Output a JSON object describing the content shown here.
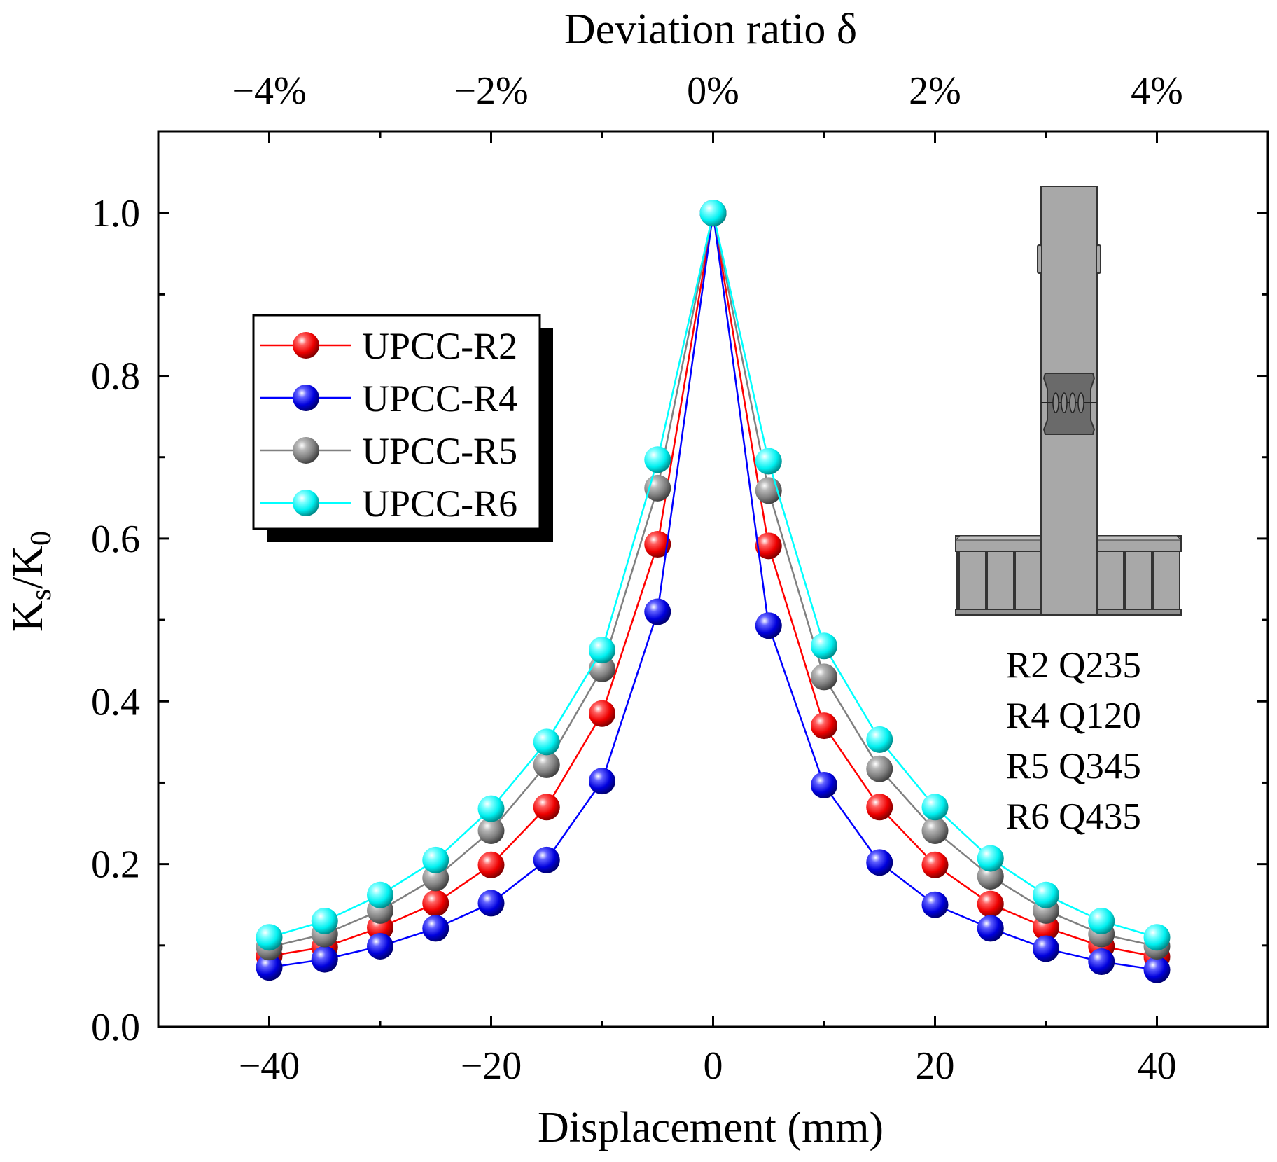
{
  "chart_data": {
    "type": "line",
    "xlabel": "Displacement (mm)",
    "ylabel_main": "K",
    "ylabel_sub1": "s",
    "ylabel_sep": "/K",
    "ylabel_sub2": "0",
    "top_axis_label": "Deviation ratio δ",
    "xlim": [
      -50,
      50
    ],
    "ylim": [
      0,
      1.1
    ],
    "x_ticks": [
      -40,
      -20,
      0,
      20,
      40
    ],
    "x_tick_labels": [
      "−40",
      "−20",
      "0",
      "20",
      "40"
    ],
    "y_ticks": [
      0.0,
      0.2,
      0.4,
      0.6,
      0.8,
      1.0
    ],
    "y_tick_labels": [
      "0.0",
      "0.2",
      "0.4",
      "0.6",
      "0.8",
      "1.0"
    ],
    "top_ticks": [
      -40,
      -20,
      0,
      20,
      40
    ],
    "top_tick_labels": [
      "−4%",
      "−2%",
      "0%",
      "2%",
      "4%"
    ],
    "x": [
      -40,
      -35,
      -30,
      -25,
      -20,
      -15,
      -10,
      -5,
      0,
      5,
      10,
      15,
      20,
      25,
      30,
      35,
      40
    ],
    "series": [
      {
        "name": "UPCC-R2",
        "color": "#ff0000",
        "values": [
          0.087,
          0.098,
          0.122,
          0.152,
          0.199,
          0.27,
          0.385,
          0.593,
          1.0,
          0.591,
          0.37,
          0.27,
          0.199,
          0.151,
          0.122,
          0.099,
          0.086
        ]
      },
      {
        "name": "UPCC-R4",
        "color": "#0000ff",
        "values": [
          0.073,
          0.083,
          0.099,
          0.121,
          0.152,
          0.205,
          0.302,
          0.51,
          1.0,
          0.493,
          0.297,
          0.202,
          0.15,
          0.121,
          0.096,
          0.08,
          0.07
        ]
      },
      {
        "name": "UPCC-R5",
        "color": "#808080",
        "values": [
          0.098,
          0.114,
          0.143,
          0.183,
          0.241,
          0.322,
          0.44,
          0.662,
          1.0,
          0.659,
          0.43,
          0.317,
          0.241,
          0.185,
          0.143,
          0.114,
          0.099
        ]
      },
      {
        "name": "UPCC-R6",
        "color": "#00ffff",
        "values": [
          0.11,
          0.13,
          0.162,
          0.205,
          0.268,
          0.35,
          0.463,
          0.697,
          1.0,
          0.695,
          0.468,
          0.353,
          0.27,
          0.207,
          0.162,
          0.13,
          0.11
        ]
      }
    ],
    "legend_position": "upper-left",
    "annotations": [
      "R2 Q235",
      "R4 Q120",
      "R5 Q345",
      "R6 Q435"
    ],
    "grid": false
  }
}
